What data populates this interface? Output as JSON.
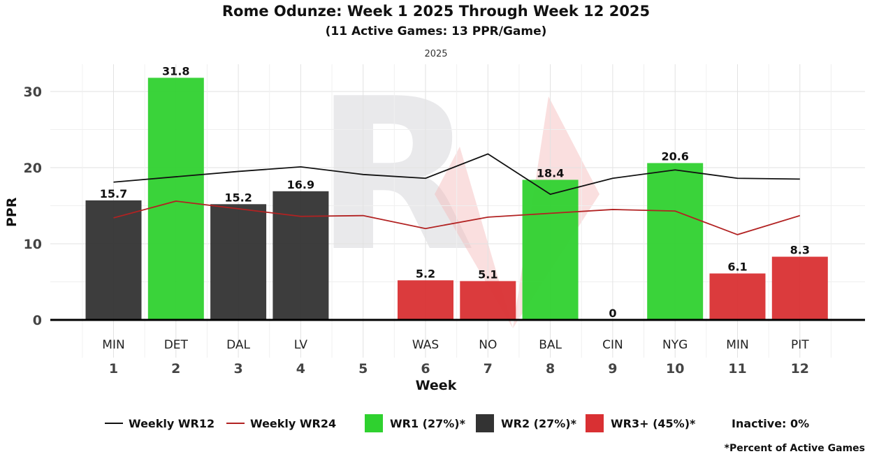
{
  "chart_data": {
    "type": "bar",
    "title": "Rome Odunze: Week 1 2025 Through Week 12 2025",
    "subtitle": "(11 Active Games: 13 PPR/Game)",
    "facet_label": "2025",
    "xlabel": "Week",
    "ylabel": "PPR",
    "ylim": [
      0,
      33.5
    ],
    "yticks": [
      0,
      10,
      20,
      30
    ],
    "weeks": [
      "1",
      "2",
      "3",
      "4",
      "5",
      "6",
      "7",
      "8",
      "9",
      "10",
      "11",
      "12"
    ],
    "opponents": [
      "MIN",
      "DET",
      "DAL",
      "LV",
      "",
      "WAS",
      "NO",
      "BAL",
      "CIN",
      "NYG",
      "MIN",
      "PIT"
    ],
    "values": [
      15.7,
      31.8,
      15.2,
      16.9,
      null,
      5.2,
      5.1,
      18.4,
      0,
      20.6,
      6.1,
      8.3
    ],
    "value_labels": [
      "15.7",
      "31.8",
      "15.2",
      "16.9",
      "",
      "5.2",
      "5.1",
      "18.4",
      "0",
      "20.6",
      "6.1",
      "8.3"
    ],
    "tiers": [
      "WR2",
      "WR1",
      "WR2",
      "WR2",
      "",
      "WR3+",
      "WR3+",
      "WR1",
      "WR3+",
      "WR1",
      "WR3+",
      "WR3+"
    ],
    "series": [
      {
        "name": "Weekly WR12",
        "type": "line",
        "color": "#111111",
        "values": [
          18.1,
          18.8,
          19.5,
          20.1,
          19.1,
          18.6,
          21.8,
          16.5,
          18.6,
          19.7,
          18.6,
          18.5
        ]
      },
      {
        "name": "Weekly WR24",
        "type": "line",
        "color": "#b22222",
        "values": [
          13.4,
          15.6,
          14.6,
          13.6,
          13.7,
          12.0,
          13.5,
          14.0,
          14.5,
          14.3,
          11.2,
          13.7
        ]
      }
    ],
    "tier_colors": {
      "WR1": "#2fd12f",
      "WR2": "#333333",
      "WR3+": "#d93033"
    }
  },
  "legend": {
    "wr12": "Weekly WR12",
    "wr24": "Weekly WR24",
    "wr1": "WR1 (27%)*",
    "wr2": "WR2 (27%)*",
    "wr3": "WR3+ (45%)*",
    "inactive": "Inactive: 0%"
  },
  "footnote": "*Percent of Active Games"
}
